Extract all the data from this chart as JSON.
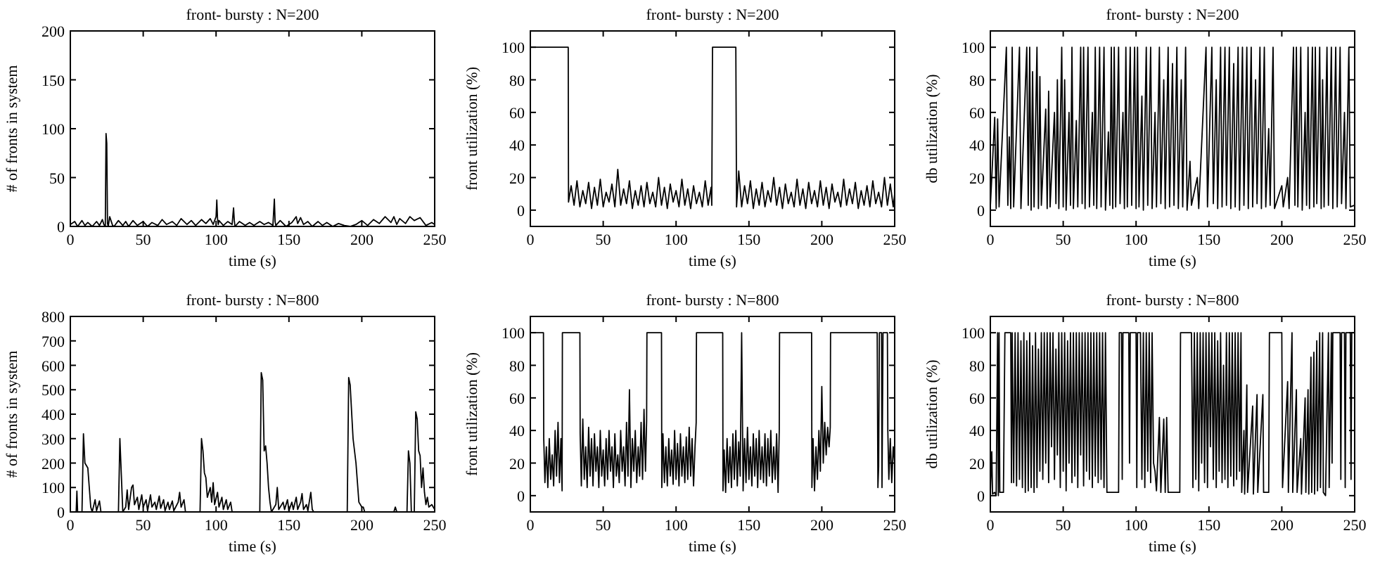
{
  "chart_data": [
    {
      "type": "line",
      "title": "front- bursty : N=200",
      "xlabel": "time (s)",
      "ylabel": "# of fronts in system",
      "xlim": [
        0,
        250
      ],
      "ylim": [
        0,
        200
      ],
      "xticks": [
        0,
        50,
        100,
        150,
        200,
        250
      ],
      "yticks": [
        0,
        50,
        100,
        150,
        200
      ],
      "series": [
        {
          "color": "#000000",
          "x": [
            0,
            3,
            5,
            8,
            10,
            12,
            15,
            18,
            20,
            22,
            23,
            24,
            24.5,
            25,
            25.5,
            26,
            27,
            29,
            30,
            33,
            36,
            38,
            40,
            43,
            46,
            50,
            53,
            56,
            60,
            63,
            66,
            70,
            73,
            76,
            80,
            83,
            86,
            90,
            93,
            96,
            98,
            100,
            100.5,
            101,
            101.5,
            102,
            105,
            108,
            111,
            112,
            112.5,
            113,
            116,
            120,
            123,
            126,
            130,
            133,
            136,
            139,
            140,
            140.5,
            141,
            144,
            148,
            152,
            155,
            156,
            158,
            160,
            163,
            166,
            170,
            173,
            176,
            180,
            184,
            188,
            192,
            196,
            200,
            204,
            208,
            212,
            216,
            220,
            222,
            224,
            226,
            230,
            233,
            236,
            240,
            244,
            248,
            250
          ],
          "values": [
            2,
            5,
            0,
            6,
            1,
            4,
            0,
            5,
            1,
            7,
            2,
            0,
            95,
            85,
            3,
            0,
            10,
            1,
            0,
            6,
            1,
            5,
            0,
            6,
            1,
            5,
            0,
            4,
            1,
            7,
            2,
            5,
            1,
            8,
            2,
            6,
            1,
            7,
            3,
            8,
            2,
            10,
            27,
            8,
            2,
            6,
            1,
            5,
            2,
            19,
            6,
            0,
            5,
            1,
            4,
            1,
            5,
            2,
            4,
            1,
            28,
            5,
            1,
            6,
            0,
            4,
            10,
            3,
            9,
            2,
            5,
            0,
            5,
            1,
            4,
            0,
            3,
            1,
            0,
            2,
            6,
            1,
            7,
            3,
            10,
            4,
            10,
            2,
            8,
            3,
            10,
            6,
            9,
            1,
            4,
            2
          ]
        }
      ]
    },
    {
      "type": "line",
      "title": "front- bursty : N=200",
      "xlabel": "time (s)",
      "ylabel": "front utilization (%)",
      "xlim": [
        0,
        250
      ],
      "ylim": [
        -10,
        110
      ],
      "xticks": [
        0,
        50,
        100,
        150,
        200,
        250
      ],
      "yticks": [
        0,
        20,
        40,
        60,
        80,
        100
      ],
      "series": [
        {
          "color": "#000000",
          "x": [
            0,
            26,
            26.2,
            28,
            30,
            32,
            34,
            36,
            38,
            40,
            42,
            44,
            46,
            48,
            50,
            52,
            54,
            56,
            58,
            60,
            62,
            64,
            66,
            68,
            70,
            72,
            74,
            76,
            78,
            80,
            82,
            84,
            86,
            88,
            90,
            92,
            94,
            96,
            98,
            100,
            102,
            104,
            106,
            108,
            110,
            112,
            114,
            116,
            118,
            120,
            122,
            124,
            124.5,
            125,
            141,
            141.5,
            143,
            145,
            147,
            149,
            151,
            153,
            155,
            157,
            159,
            161,
            163,
            165,
            167,
            169,
            171,
            173,
            175,
            177,
            179,
            181,
            183,
            185,
            187,
            189,
            191,
            193,
            195,
            197,
            199,
            201,
            203,
            205,
            207,
            209,
            211,
            213,
            215,
            217,
            219,
            221,
            223,
            225,
            227,
            229,
            231,
            233,
            235,
            237,
            239,
            241,
            243,
            245,
            247,
            249,
            250
          ],
          "values": [
            100,
            100,
            5,
            15,
            3,
            18,
            2,
            12,
            4,
            17,
            1,
            14,
            3,
            19,
            2,
            11,
            5,
            16,
            2,
            25,
            3,
            13,
            4,
            18,
            1,
            12,
            3,
            15,
            2,
            17,
            4,
            11,
            2,
            20,
            3,
            14,
            1,
            16,
            5,
            12,
            2,
            19,
            3,
            13,
            1,
            15,
            4,
            11,
            2,
            18,
            3,
            14,
            3,
            100,
            100,
            2,
            24,
            2,
            15,
            4,
            18,
            1,
            13,
            3,
            17,
            2,
            12,
            5,
            20,
            3,
            14,
            1,
            16,
            4,
            11,
            2,
            19,
            3,
            13,
            1,
            17,
            4,
            12,
            2,
            18,
            3,
            14,
            1,
            16,
            5,
            11,
            2,
            19,
            3,
            13,
            4,
            17,
            1,
            12,
            3,
            15,
            2,
            18,
            4,
            11,
            2,
            20,
            3,
            16,
            2,
            10
          ]
        }
      ]
    },
    {
      "type": "line",
      "title": "front- bursty : N=200",
      "xlabel": "time (s)",
      "ylabel": "db utilization (%)",
      "xlim": [
        0,
        250
      ],
      "ylim": [
        -10,
        110
      ],
      "xticks": [
        0,
        50,
        100,
        150,
        200,
        250
      ],
      "yticks": [
        0,
        20,
        40,
        60,
        80,
        100
      ],
      "series": [
        {
          "color": "#000000",
          "x": [
            0,
            3,
            4,
            5,
            6,
            11,
            12,
            13,
            14,
            15,
            16,
            20,
            21,
            25,
            26,
            27,
            28,
            29,
            30,
            32,
            33,
            34,
            35,
            38,
            39,
            40,
            41,
            44,
            45,
            46,
            47,
            49,
            50,
            51,
            52,
            54,
            55,
            56,
            57,
            59,
            60,
            62,
            63,
            64,
            65,
            67,
            68,
            70,
            71,
            72,
            73,
            75,
            76,
            78,
            79,
            81,
            82,
            83,
            84,
            85,
            86,
            88,
            89,
            91,
            92,
            93,
            94,
            96,
            97,
            99,
            100,
            101,
            102,
            104,
            105,
            107,
            108,
            110,
            111,
            113,
            114,
            116,
            117,
            119,
            120,
            122,
            123,
            125,
            126,
            128,
            129,
            131,
            132,
            134,
            135,
            137,
            138,
            142,
            143,
            148,
            149,
            152,
            153,
            155,
            156,
            158,
            159,
            161,
            162,
            164,
            165,
            167,
            168,
            170,
            171,
            173,
            174,
            176,
            177,
            179,
            180,
            182,
            183,
            185,
            186,
            188,
            189,
            191,
            192,
            194,
            195,
            200,
            201,
            204,
            205,
            208,
            209,
            210,
            211,
            213,
            214,
            216,
            217,
            218,
            219,
            221,
            222,
            223,
            224,
            226,
            227,
            228,
            229,
            231,
            232,
            234,
            235,
            237,
            238,
            240,
            241,
            243,
            244,
            246,
            247,
            250
          ],
          "values": [
            2,
            57,
            1,
            56,
            2,
            100,
            3,
            45,
            1,
            100,
            2,
            100,
            1,
            100,
            3,
            100,
            0,
            85,
            2,
            100,
            1,
            82,
            3,
            62,
            1,
            73,
            2,
            60,
            4,
            80,
            1,
            100,
            2,
            80,
            0,
            60,
            3,
            100,
            1,
            55,
            2,
            100,
            4,
            100,
            1,
            100,
            2,
            60,
            3,
            100,
            1,
            100,
            2,
            100,
            0,
            48,
            3,
            100,
            1,
            100,
            2,
            100,
            4,
            60,
            1,
            100,
            2,
            100,
            3,
            100,
            1,
            100,
            2,
            70,
            0,
            100,
            3,
            100,
            1,
            60,
            2,
            100,
            4,
            80,
            1,
            100,
            2,
            90,
            3,
            100,
            1,
            80,
            2,
            100,
            0,
            30,
            3,
            20,
            1,
            100,
            2,
            100,
            4,
            80,
            1,
            100,
            2,
            100,
            3,
            100,
            1,
            90,
            2,
            100,
            0,
            100,
            3,
            100,
            1,
            100,
            2,
            80,
            4,
            100,
            1,
            100,
            2,
            50,
            3,
            100,
            1,
            15,
            2,
            20,
            1,
            100,
            3,
            100,
            2,
            100,
            0,
            60,
            3,
            100,
            1,
            100,
            2,
            100,
            4,
            100,
            1,
            80,
            2,
            100,
            3,
            100,
            1,
            100,
            2,
            100,
            4,
            60,
            1,
            100,
            2,
            3
          ]
        }
      ]
    },
    {
      "type": "line",
      "title": "front- bursty : N=800",
      "xlabel": "time (s)",
      "ylabel": "# of fronts in system",
      "xlim": [
        0,
        250
      ],
      "ylim": [
        0,
        800
      ],
      "xticks": [
        0,
        50,
        100,
        150,
        200,
        250
      ],
      "yticks": [
        0,
        100,
        200,
        300,
        400,
        500,
        600,
        700,
        800
      ],
      "series": [
        {
          "color": "#000000",
          "x": [
            0,
            4,
            4.5,
            5,
            8,
            9,
            10,
            12,
            13,
            14,
            15,
            17,
            18,
            20,
            21,
            33,
            34,
            35,
            36,
            38,
            39,
            40,
            42,
            43,
            44,
            46,
            47,
            49,
            50,
            52,
            53,
            55,
            56,
            58,
            59,
            61,
            62,
            64,
            65,
            67,
            68,
            70,
            71,
            74,
            75,
            76,
            78,
            79,
            89,
            90,
            91,
            92,
            93,
            94,
            96,
            97,
            98,
            99,
            101,
            102,
            104,
            105,
            107,
            108,
            110,
            111,
            130,
            131,
            132,
            133,
            134,
            135,
            136,
            137,
            138,
            141,
            142,
            143,
            146,
            147,
            149,
            150,
            152,
            153,
            155,
            156,
            158,
            159,
            160,
            162,
            163,
            165,
            166,
            167,
            190,
            191,
            192,
            194,
            196,
            197,
            198,
            200,
            201,
            202,
            222,
            223,
            224,
            231,
            232,
            233,
            234,
            236,
            237,
            238,
            239,
            240,
            241,
            242,
            243,
            244,
            245,
            246,
            248,
            250
          ],
          "values": [
            0,
            0,
            85,
            0,
            0,
            320,
            200,
            180,
            100,
            20,
            0,
            50,
            5,
            45,
            0,
            0,
            300,
            150,
            0,
            20,
            90,
            10,
            100,
            110,
            30,
            60,
            10,
            70,
            20,
            50,
            5,
            70,
            20,
            40,
            10,
            65,
            15,
            50,
            5,
            40,
            10,
            45,
            5,
            40,
            80,
            20,
            50,
            0,
            0,
            300,
            250,
            160,
            140,
            60,
            100,
            40,
            120,
            30,
            80,
            20,
            60,
            10,
            50,
            10,
            40,
            0,
            0,
            570,
            540,
            250,
            270,
            200,
            100,
            40,
            0,
            30,
            100,
            10,
            40,
            10,
            50,
            5,
            40,
            10,
            60,
            10,
            40,
            75,
            10,
            30,
            5,
            80,
            10,
            0,
            0,
            550,
            520,
            300,
            200,
            120,
            40,
            20,
            20,
            0,
            0,
            20,
            0,
            0,
            250,
            200,
            0,
            0,
            410,
            380,
            250,
            230,
            100,
            180,
            80,
            30,
            60,
            20,
            30,
            10
          ]
        }
      ]
    },
    {
      "type": "line",
      "title": "front- bursty : N=800",
      "xlabel": "time (s)",
      "ylabel": "front utilization (%)",
      "xlim": [
        0,
        250
      ],
      "ylim": [
        -10,
        110
      ],
      "xticks": [
        0,
        50,
        100,
        150,
        200,
        250
      ],
      "yticks": [
        0,
        20,
        40,
        60,
        80,
        100
      ],
      "series": [
        {
          "color": "#000000",
          "x": [
            0,
            9,
            9.2,
            10,
            11,
            12,
            13,
            14,
            15,
            16,
            17,
            18,
            19,
            20,
            21,
            21.8,
            22,
            34,
            34.2,
            35,
            36,
            37,
            38,
            39,
            40,
            41,
            42,
            43,
            44,
            45,
            46,
            47,
            48,
            49,
            50,
            51,
            52,
            53,
            54,
            55,
            56,
            57,
            58,
            59,
            60,
            61,
            62,
            63,
            64,
            65,
            66,
            67,
            68,
            69,
            70,
            71,
            72,
            73,
            74,
            75,
            76,
            77,
            78,
            79,
            79.8,
            80,
            90,
            90.2,
            91,
            92,
            93,
            94,
            95,
            96,
            97,
            98,
            99,
            100,
            101,
            102,
            103,
            104,
            105,
            106,
            107,
            108,
            109,
            110,
            111,
            112,
            113,
            113.8,
            114,
            132,
            132.2,
            133,
            134,
            135,
            136,
            137,
            138,
            139,
            140,
            141,
            142,
            143,
            144,
            145,
            146,
            147,
            148,
            149,
            150,
            151,
            152,
            153,
            154,
            155,
            156,
            157,
            158,
            159,
            160,
            161,
            162,
            163,
            164,
            165,
            166,
            167,
            168,
            169,
            170,
            170.8,
            171,
            193,
            193.2,
            194,
            195,
            196,
            197,
            198,
            199,
            200,
            201,
            202,
            203,
            204,
            205,
            205.8,
            206,
            238,
            238.5,
            239,
            239.5,
            241,
            241.3,
            242,
            245,
            245.3,
            246,
            247,
            248,
            249,
            250
          ],
          "values": [
            100,
            100,
            35,
            8,
            30,
            5,
            35,
            10,
            25,
            6,
            40,
            12,
            45,
            8,
            35,
            3,
            100,
            100,
            38,
            6,
            47,
            10,
            30,
            5,
            42,
            12,
            35,
            6,
            38,
            15,
            30,
            5,
            40,
            12,
            28,
            6,
            35,
            10,
            40,
            15,
            30,
            5,
            38,
            12,
            25,
            8,
            40,
            15,
            30,
            6,
            45,
            12,
            65,
            5,
            35,
            15,
            40,
            8,
            30,
            12,
            45,
            10,
            53,
            15,
            46,
            100,
            100,
            5,
            38,
            8,
            30,
            6,
            35,
            12,
            28,
            7,
            40,
            10,
            32,
            6,
            38,
            12,
            30,
            8,
            36,
            10,
            42,
            12,
            35,
            6,
            30,
            45,
            100,
            100,
            3,
            28,
            2,
            35,
            8,
            30,
            5,
            38,
            10,
            40,
            6,
            33,
            12,
            100,
            3,
            35,
            8,
            42,
            10,
            30,
            6,
            38,
            12,
            35,
            5,
            40,
            10,
            30,
            8,
            38,
            6,
            35,
            12,
            40,
            8,
            30,
            10,
            38,
            2,
            40,
            100,
            100,
            5,
            35,
            3,
            30,
            10,
            40,
            15,
            67,
            20,
            45,
            25,
            42,
            30,
            42,
            100,
            100,
            5,
            18,
            100,
            100,
            5,
            100,
            100,
            40,
            10,
            35,
            8,
            30,
            20
          ]
        }
      ]
    },
    {
      "type": "line",
      "title": "front- bursty : N=800",
      "xlabel": "time (s)",
      "ylabel": "db utilization (%)",
      "xlim": [
        0,
        250
      ],
      "ylim": [
        -10,
        110
      ],
      "xticks": [
        0,
        50,
        100,
        150,
        200,
        250
      ],
      "yticks": [
        0,
        20,
        40,
        60,
        80,
        100
      ],
      "series": [
        {
          "color": "#000000",
          "x": [
            0,
            1,
            1.5,
            3,
            4,
            5,
            5.5,
            6,
            6.5,
            9,
            10,
            14,
            14.5,
            15,
            16,
            17,
            18,
            19,
            20,
            21,
            22,
            23,
            24,
            25,
            26,
            27,
            28,
            29,
            30,
            31,
            32,
            33,
            34,
            35,
            36,
            37,
            38,
            39,
            40,
            41,
            42,
            43,
            44,
            45,
            46,
            47,
            48,
            49,
            50,
            51,
            52,
            53,
            54,
            55,
            56,
            57,
            58,
            59,
            60,
            61,
            62,
            63,
            64,
            65,
            66,
            67,
            68,
            69,
            70,
            71,
            72,
            73,
            74,
            75,
            76,
            77,
            78,
            79,
            80,
            80.5,
            88,
            88.5,
            90,
            90.5,
            91,
            95,
            95.5,
            96,
            100,
            100.5,
            101,
            103,
            104,
            105,
            106,
            107,
            108,
            109,
            110,
            111,
            112,
            113,
            114,
            116,
            117,
            119,
            120,
            121,
            122,
            130,
            130.5,
            138,
            139,
            140,
            141,
            142,
            143,
            144,
            145,
            146,
            147,
            148,
            149,
            150,
            151,
            152,
            153,
            154,
            155,
            156,
            157,
            158,
            159,
            160,
            161,
            162,
            163,
            164,
            165,
            166,
            167,
            168,
            169,
            170,
            171,
            172,
            172.5,
            174,
            174.5,
            176,
            176.5,
            180,
            180.5,
            183,
            183.5,
            187,
            187.5,
            191,
            191.5,
            200,
            200.5,
            204,
            204.5,
            207,
            207.5,
            210,
            210.5,
            213,
            213.5,
            216,
            216.5,
            218,
            218.5,
            220,
            220.5,
            222,
            222.5,
            224,
            224.5,
            226,
            226.5,
            228,
            228.5,
            230,
            232,
            232.5,
            234,
            234.5,
            235,
            240,
            240.5,
            241,
            243,
            243.5,
            244,
            247,
            247.5,
            248,
            250
          ],
          "values": [
            2,
            27,
            1,
            2,
            0,
            100,
            0,
            100,
            2,
            2,
            100,
            100,
            8,
            100,
            8,
            100,
            6,
            100,
            10,
            95,
            5,
            100,
            2,
            95,
            3,
            100,
            5,
            92,
            2,
            100,
            5,
            90,
            15,
            100,
            10,
            100,
            20,
            100,
            8,
            100,
            30,
            100,
            10,
            90,
            25,
            100,
            5,
            100,
            15,
            100,
            3,
            95,
            20,
            100,
            8,
            100,
            12,
            100,
            5,
            100,
            25,
            100,
            6,
            100,
            15,
            100,
            10,
            100,
            5,
            100,
            12,
            100,
            8,
            100,
            10,
            100,
            5,
            100,
            2,
            2,
            2,
            100,
            100,
            10,
            100,
            100,
            20,
            100,
            100,
            5,
            100,
            100,
            10,
            100,
            5,
            100,
            15,
            100,
            8,
            100,
            20,
            15,
            3,
            48,
            2,
            47,
            2,
            48,
            2,
            2,
            100,
            100,
            5,
            100,
            10,
            100,
            3,
            100,
            20,
            100,
            8,
            100,
            5,
            100,
            30,
            100,
            10,
            100,
            5,
            95,
            15,
            100,
            8,
            80,
            10,
            100,
            5,
            100,
            12,
            100,
            6,
            100,
            10,
            100,
            15,
            100,
            2,
            40,
            1,
            68,
            2,
            55,
            1,
            62,
            2,
            62,
            2,
            2,
            100,
            100,
            5,
            70,
            2,
            100,
            2,
            65,
            2,
            35,
            1,
            60,
            2,
            65,
            1,
            85,
            2,
            88,
            1,
            95,
            3,
            100,
            5,
            100,
            2,
            0,
            100,
            5,
            100,
            20,
            100,
            100,
            10,
            100,
            100,
            5,
            100,
            100,
            10,
            100,
            100
          ]
        }
      ]
    }
  ]
}
